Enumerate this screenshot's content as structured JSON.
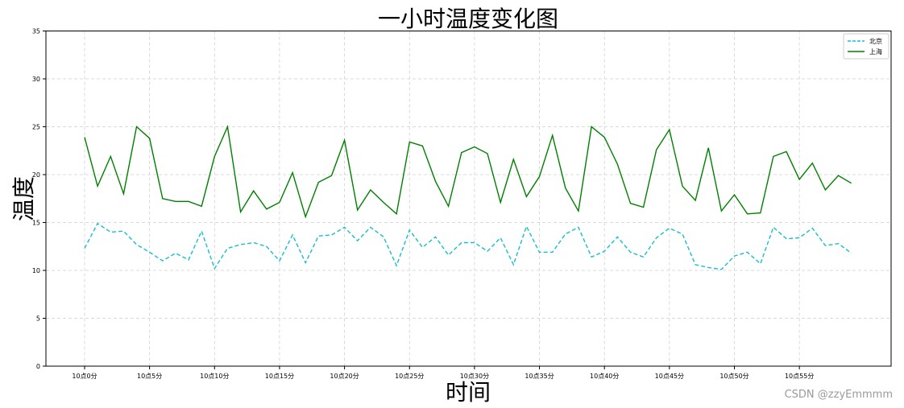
{
  "chart_data": {
    "type": "line",
    "title": "一小时温度变化图",
    "xlabel": "时间",
    "ylabel": "温度",
    "ylim": [
      0,
      35
    ],
    "yticks": [
      0,
      5,
      10,
      15,
      20,
      25,
      30,
      35
    ],
    "x": [
      "10点0分",
      "10点1分",
      "10点2分",
      "10点3分",
      "10点4分",
      "10点5分",
      "10点6分",
      "10点7分",
      "10点8分",
      "10点9分",
      "10点10分",
      "10点11分",
      "10点12分",
      "10点13分",
      "10点14分",
      "10点15分",
      "10点16分",
      "10点17分",
      "10点18分",
      "10点19分",
      "10点20分",
      "10点21分",
      "10点22分",
      "10点23分",
      "10点24分",
      "10点25分",
      "10点26分",
      "10点27分",
      "10点28分",
      "10点29分",
      "10点30分",
      "10点31分",
      "10点32分",
      "10点33分",
      "10点34分",
      "10点35分",
      "10点36分",
      "10点37分",
      "10点38分",
      "10点39分",
      "10点40分",
      "10点41分",
      "10点42分",
      "10点43分",
      "10点44分",
      "10点45分",
      "10点46分",
      "10点47分",
      "10点48分",
      "10点49分",
      "10点50分",
      "10点51分",
      "10点52分",
      "10点53分",
      "10点54分",
      "10点55分",
      "10点56分",
      "10点57分",
      "10点58分",
      "10点59分"
    ],
    "xticks": [
      "10点0分",
      "10点5分",
      "10点10分",
      "10点15分",
      "10点20分",
      "10点25分",
      "10点30分",
      "10点35分",
      "10点40分",
      "10点45分",
      "10点50分",
      "10点55分"
    ],
    "grid": true,
    "legend_position": "top-right",
    "series": [
      {
        "name": "北京",
        "color": "#17becf",
        "linestyle": "dashed",
        "values": [
          12.3,
          14.9,
          14.0,
          14.1,
          12.7,
          11.9,
          11.0,
          11.8,
          11.1,
          14.1,
          10.2,
          12.3,
          12.7,
          12.9,
          12.5,
          11.0,
          13.7,
          10.8,
          13.6,
          13.7,
          14.5,
          13.1,
          14.5,
          13.5,
          10.5,
          14.2,
          12.4,
          13.5,
          11.6,
          12.9,
          12.9,
          12.0,
          13.4,
          10.6,
          14.6,
          11.9,
          11.9,
          13.8,
          14.5,
          11.4,
          12.0,
          13.5,
          11.9,
          11.4,
          13.4,
          14.4,
          13.8,
          10.6,
          10.3,
          10.1,
          11.5,
          11.9,
          10.7,
          14.5,
          13.3,
          13.4,
          14.4,
          12.6,
          12.8,
          11.8
        ]
      },
      {
        "name": "上海",
        "color": "#008000",
        "linestyle": "solid",
        "values": [
          23.9,
          18.8,
          21.9,
          18.0,
          25.0,
          23.8,
          17.5,
          17.2,
          17.2,
          16.7,
          21.9,
          25.0,
          16.1,
          18.3,
          16.4,
          17.1,
          20.2,
          15.6,
          19.2,
          19.9,
          23.6,
          16.3,
          18.4,
          17.1,
          15.9,
          23.4,
          23.0,
          19.3,
          16.7,
          22.3,
          22.9,
          22.2,
          17.1,
          21.6,
          17.7,
          19.8,
          24.1,
          18.6,
          16.2,
          25.0,
          23.9,
          21.1,
          17.0,
          16.6,
          22.6,
          24.7,
          18.8,
          17.3,
          22.8,
          16.2,
          17.9,
          15.9,
          16.0,
          21.9,
          22.4,
          19.5,
          21.2,
          18.4,
          19.9,
          19.1
        ]
      }
    ]
  },
  "watermark": "CSDN @zzyEmmmm"
}
